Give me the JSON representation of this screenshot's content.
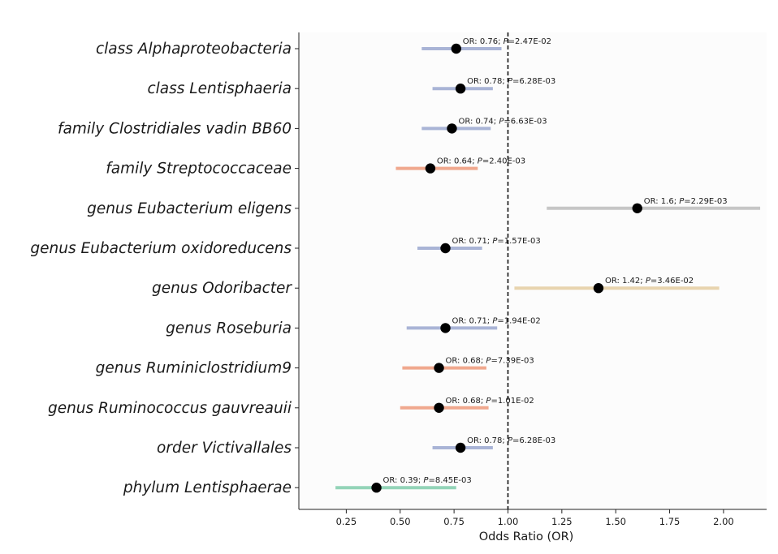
{
  "chart_data": {
    "type": "forest",
    "title": "",
    "xlabel": "Odds Ratio (OR)",
    "ylabel": "",
    "xlim": [
      0.03,
      2.2
    ],
    "x_ticks": [
      0.25,
      0.5,
      0.75,
      1.0,
      1.25,
      1.5,
      1.75,
      2.0
    ],
    "x_tick_labels": [
      "0.25",
      "0.50",
      "0.75",
      "1.00",
      "1.25",
      "1.50",
      "1.75",
      "2.00"
    ],
    "reference_line": 1.0,
    "grid": false,
    "rows": [
      {
        "label": "class Alphaproteobacteria",
        "or": 0.76,
        "lower": 0.6,
        "upper": 0.97,
        "annotation": "OR: 0.76; ",
        "p_text": "=2.47E-02",
        "color": "#a9b4d6"
      },
      {
        "label": "class Lentisphaeria",
        "or": 0.78,
        "lower": 0.65,
        "upper": 0.93,
        "annotation": "OR: 0.78; ",
        "p_text": "=6.28E-03",
        "color": "#a9b4d6"
      },
      {
        "label": "family Clostridiales vadin BB60",
        "or": 0.74,
        "lower": 0.6,
        "upper": 0.92,
        "annotation": "OR: 0.74; ",
        "p_text": "=6.63E-03",
        "color": "#a9b4d6"
      },
      {
        "label": "family Streptococcaceae",
        "or": 0.64,
        "lower": 0.48,
        "upper": 0.86,
        "annotation": "OR: 0.64; ",
        "p_text": "=2.40E-03",
        "color": "#f0a88e"
      },
      {
        "label": "genus Eubacterium eligens",
        "or": 1.6,
        "lower": 1.18,
        "upper": 2.17,
        "annotation": "OR: 1.6; ",
        "p_text": "=2.29E-03",
        "color": "#c6c6c6"
      },
      {
        "label": "genus Eubacterium oxidoreducens",
        "or": 0.71,
        "lower": 0.58,
        "upper": 0.88,
        "annotation": "OR: 0.71; ",
        "p_text": "=1.57E-03",
        "color": "#a9b4d6"
      },
      {
        "label": "genus Odoribacter",
        "or": 1.42,
        "lower": 1.03,
        "upper": 1.98,
        "annotation": "OR: 1.42; ",
        "p_text": "=3.46E-02",
        "color": "#e8d4ae"
      },
      {
        "label": "genus Roseburia",
        "or": 0.71,
        "lower": 0.53,
        "upper": 0.95,
        "annotation": "OR: 0.71; ",
        "p_text": "=1.94E-02",
        "color": "#a9b4d6"
      },
      {
        "label": "genus Ruminiclostridium9",
        "or": 0.68,
        "lower": 0.51,
        "upper": 0.9,
        "annotation": "OR: 0.68; ",
        "p_text": "=7.39E-03",
        "color": "#f0a88e"
      },
      {
        "label": "genus Ruminococcus gauvreauii",
        "or": 0.68,
        "lower": 0.5,
        "upper": 0.91,
        "annotation": "OR: 0.68; ",
        "p_text": "=1.01E-02",
        "color": "#f0a88e"
      },
      {
        "label": "order Victivallales",
        "or": 0.78,
        "lower": 0.65,
        "upper": 0.93,
        "annotation": "OR: 0.78; ",
        "p_text": "=6.28E-03",
        "color": "#a9b4d6"
      },
      {
        "label": "phylum Lentisphaerae",
        "or": 0.39,
        "lower": 0.2,
        "upper": 0.76,
        "annotation": "OR: 0.39; ",
        "p_text": "=8.45E-03",
        "color": "#93d4b8"
      }
    ],
    "p_symbol": "P"
  }
}
